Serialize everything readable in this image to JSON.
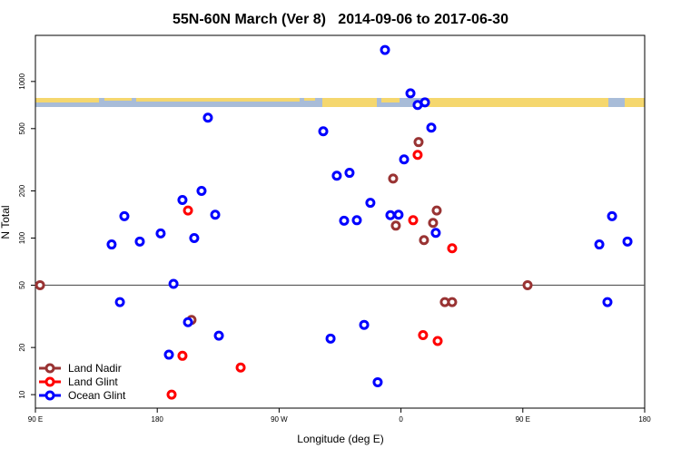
{
  "chart_data": {
    "type": "scatter",
    "title": "55N-60N March (Ver 8)   2014-09-06 to 2017-06-30",
    "x_label": "Longitude (deg E)",
    "y_label": "N Total",
    "xlim": [
      -270,
      180
    ],
    "xticks": [
      {
        "value": -270,
        "label": "90 E"
      },
      {
        "value": -180,
        "label": "180"
      },
      {
        "value": -90,
        "label": "90 W"
      },
      0,
      {
        "value": 90,
        "label": "90 E"
      },
      180
    ],
    "ylim": [
      8.2,
      1970
    ],
    "log_y": true,
    "yticks": [
      10,
      20,
      50,
      100,
      200,
      500,
      1000
    ],
    "hline": 50,
    "legend": "bottom-left",
    "series": [
      {
        "name": "Land Nadir",
        "color": "#993333",
        "x": [
          -266.6,
          -154.7,
          -5.8,
          13,
          -3.8,
          26.4,
          23.7,
          17,
          32.4,
          37.8,
          93.5
        ],
        "values": [
          50,
          30,
          240,
          410,
          120,
          150,
          125,
          97,
          39,
          39,
          50
        ]
      },
      {
        "name": "Land Glint",
        "color": "#ff0000",
        "x": [
          -157.3,
          -161.4,
          -169.4,
          -118.4,
          12.3,
          9,
          37.8,
          16.3,
          27.1
        ],
        "values": [
          150,
          17.7,
          10,
          14.9,
          340,
          130,
          86,
          24,
          22
        ]
      },
      {
        "name": "Ocean Glint",
        "color": "#0000ff",
        "x": [
          -11.8,
          7,
          12.3,
          17.7,
          -142.6,
          -57.4,
          22.4,
          2.3,
          -47.4,
          -38,
          -147.3,
          -161.4,
          -204.3,
          -137.2,
          -22.6,
          -7.8,
          -1.8,
          -42,
          -32.6,
          -177.5,
          25.7,
          -152.7,
          -192.9,
          -213.7,
          -168,
          -207.6,
          -157.3,
          -134.5,
          -52,
          -27.2,
          -17.2,
          146.5,
          155.9,
          167.3,
          152.5,
          -171.4
        ],
        "values": [
          1590,
          840,
          708,
          736,
          587,
          481,
          507,
          318,
          250,
          261,
          200,
          175,
          138,
          141,
          168,
          140,
          141,
          129,
          130,
          107,
          108,
          100,
          95,
          91,
          51,
          39,
          29,
          23.8,
          22.8,
          27.9,
          12,
          91,
          138,
          95,
          39,
          18
        ]
      }
    ]
  }
}
